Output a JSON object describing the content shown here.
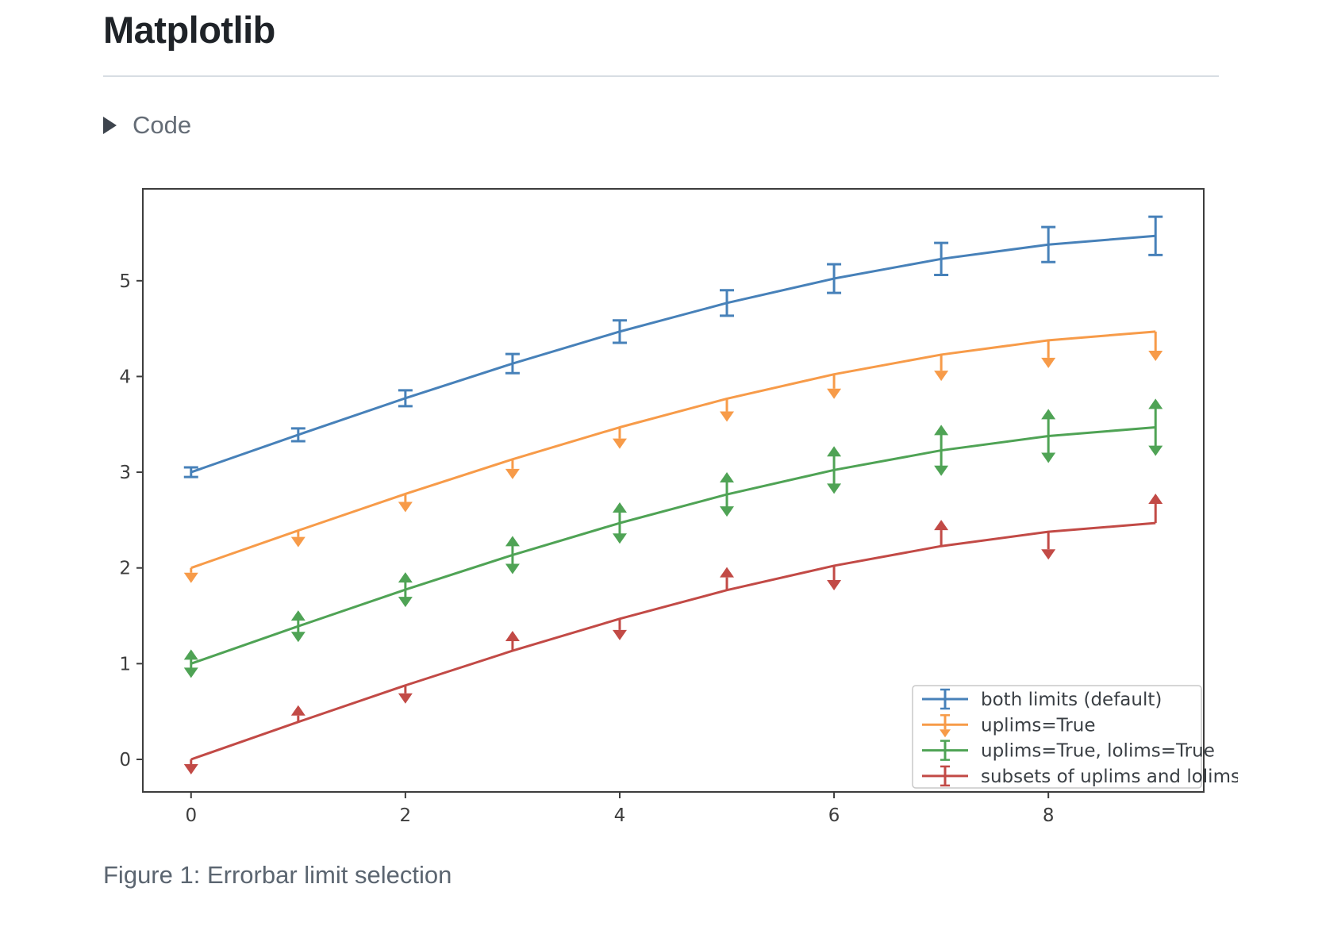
{
  "page": {
    "title": "Matplotlib",
    "code_toggle": {
      "label": "Code",
      "icon": "triangle-right-icon"
    },
    "caption": "Figure 1: Errorbar limit selection"
  },
  "chart_data": {
    "type": "line",
    "title": "",
    "xlabel": "",
    "ylabel": "",
    "x": [
      0,
      1,
      2,
      3,
      4,
      5,
      6,
      7,
      8,
      9
    ],
    "xlim": [
      -0.45,
      9.45
    ],
    "ylim": [
      -0.34,
      5.96
    ],
    "xticks": [
      0,
      2,
      4,
      6,
      8
    ],
    "yticks": [
      0,
      1,
      2,
      3,
      4,
      5
    ],
    "grid": false,
    "axis_color": "#3d3d3d",
    "yerr": [
      0.05,
      0.067,
      0.083,
      0.1,
      0.117,
      0.133,
      0.15,
      0.167,
      0.183,
      0.2
    ],
    "series": [
      {
        "name": "both limits (default)",
        "color": "#4781b9",
        "limit_style": "caps",
        "values": [
          3.0,
          3.391,
          3.773,
          4.135,
          4.469,
          4.768,
          5.023,
          5.228,
          5.378,
          5.469
        ]
      },
      {
        "name": "uplims=True",
        "color": "#f79b49",
        "limit_style": "uplims",
        "values": [
          2.0,
          2.391,
          2.773,
          3.135,
          3.469,
          3.768,
          4.023,
          4.228,
          4.378,
          4.469
        ]
      },
      {
        "name": "uplims=True, lolims=True",
        "color": "#4fa355",
        "limit_style": "uplims+lolims",
        "values": [
          1.0,
          1.391,
          1.773,
          2.135,
          2.469,
          2.768,
          3.023,
          3.228,
          3.378,
          3.469
        ]
      },
      {
        "name": "subsets of uplims and lolims",
        "color": "#c24a46",
        "limit_style": "mixed",
        "uplims": [
          true,
          false,
          true,
          false,
          true,
          false,
          true,
          false,
          true,
          false
        ],
        "lolims": [
          false,
          true,
          false,
          true,
          false,
          true,
          false,
          true,
          false,
          true
        ],
        "values": [
          0.0,
          0.391,
          0.773,
          1.135,
          1.469,
          1.768,
          2.023,
          2.228,
          2.378,
          2.469
        ]
      }
    ],
    "legend": {
      "position": "lower right",
      "border_color": "#c9c9c9",
      "text_color": "#3a3f44",
      "labels": [
        "both limits (default)",
        "uplims=True",
        "uplims=True, lolims=True",
        "subsets of uplims and lolims"
      ]
    }
  }
}
